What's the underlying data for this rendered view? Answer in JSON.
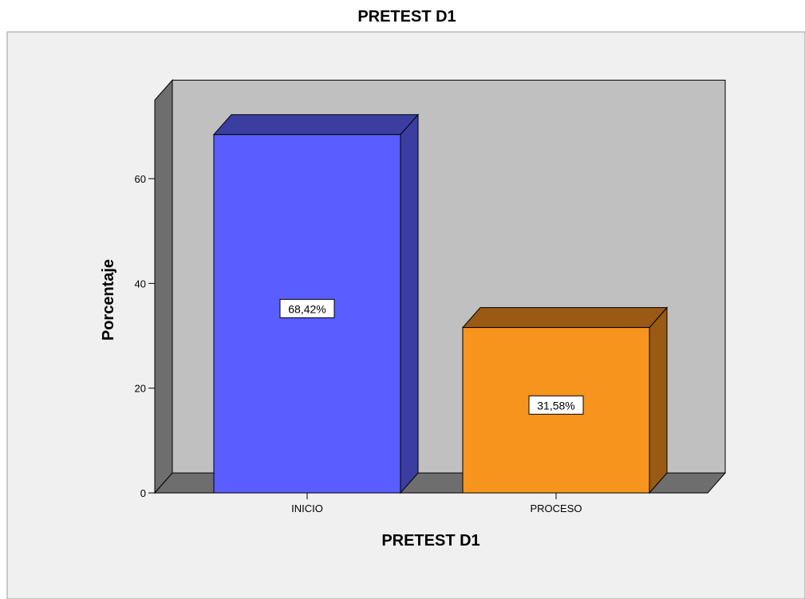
{
  "chart_data": {
    "type": "bar",
    "title": "PRETEST D1",
    "xlabel": "PRETEST D1",
    "ylabel": "Porcentaje",
    "categories": [
      "INICIO",
      "PROCESO"
    ],
    "values": [
      68.42,
      31.58
    ],
    "data_labels": [
      "68,42%",
      "31,58%"
    ],
    "ylim": [
      0,
      75
    ],
    "yticks": [
      0,
      20,
      40,
      60
    ],
    "ytick_labels": [
      "0",
      "20",
      "40",
      "60"
    ],
    "three_d": true,
    "grid": false,
    "legend": "none"
  },
  "colors": {
    "outer_background": "#f0f0f0",
    "plot_back_wall": "#c0c0c0",
    "side_wall": "#6e6e6e",
    "bar_fronts": [
      "#5a5dff",
      "#f7941d"
    ],
    "bar_tops": [
      "#3b3ea0",
      "#9a5a14"
    ],
    "bar_sides": [
      "#3b3ea0",
      "#9a5a14"
    ]
  }
}
